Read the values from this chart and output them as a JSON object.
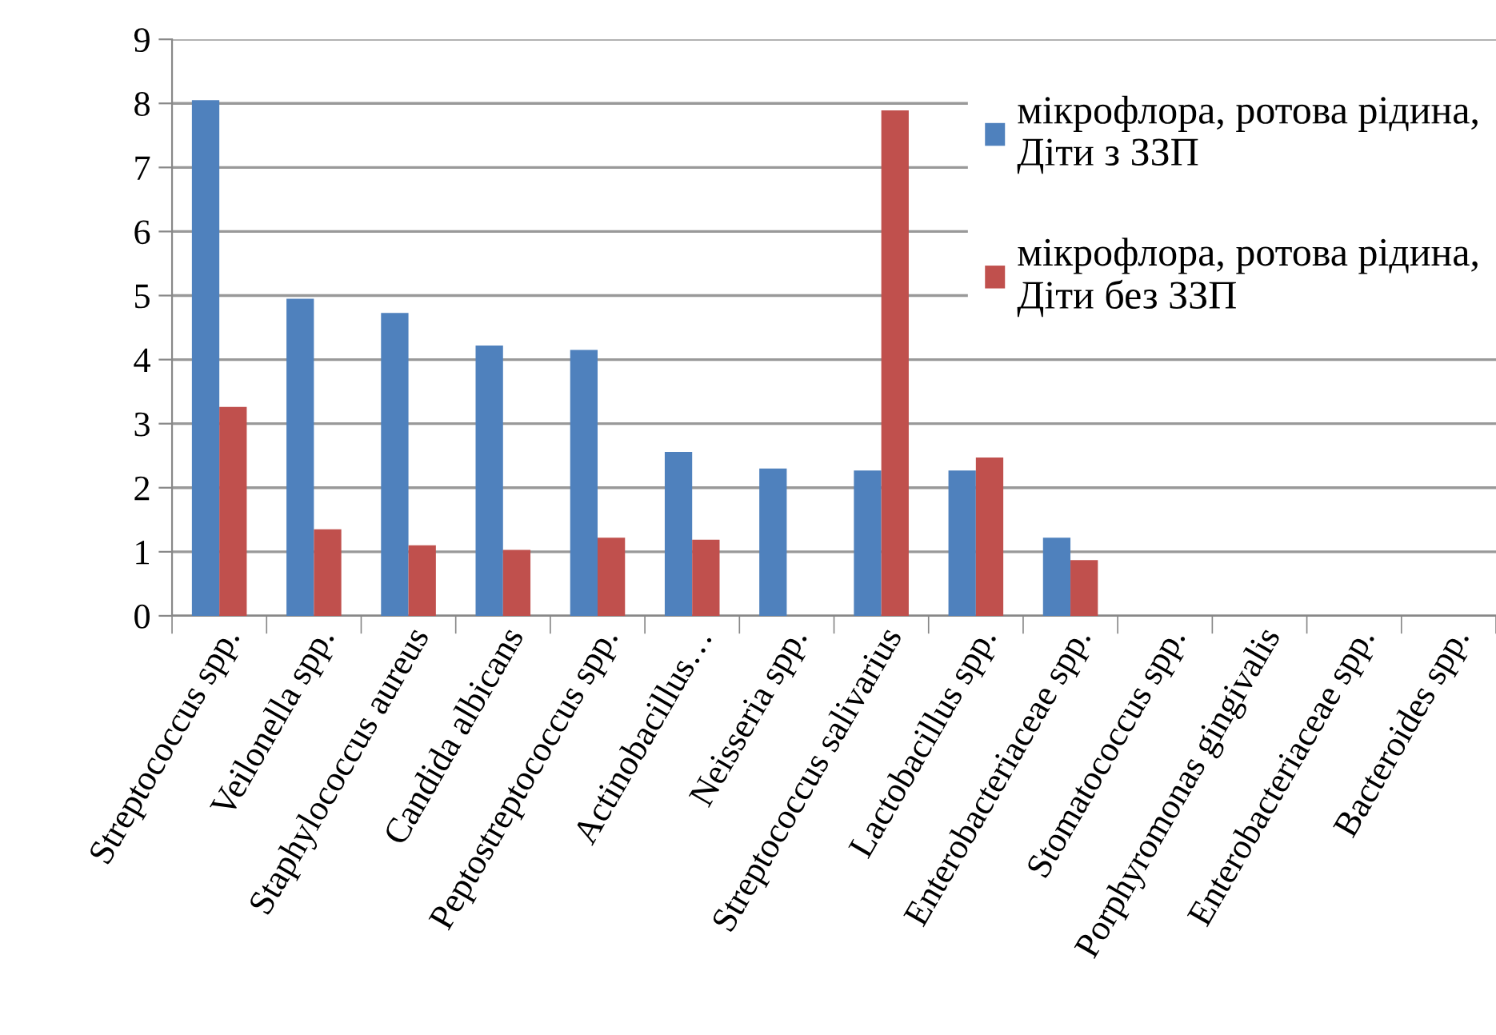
{
  "chart_data": {
    "type": "bar",
    "categories": [
      "Streptococcus spp.",
      "Veilonella spp.",
      "Staphylococcus aureus",
      "Candida albicans",
      "Peptostreptococcus spp.",
      "Actinobacillus…",
      "Neisseria spp.",
      "Streptococcus salivarius",
      "Lactobacillus spp.",
      "Enterobacteriaceae spp.",
      "Stomatococcus spp.",
      "Porphyromonas gingivalis",
      "Enterobacteriaceae spp.",
      "Bacteroides spp."
    ],
    "series": [
      {
        "name": "мікрофлора, ротова рідина,\nДіти з ЗЗП",
        "color": "#4f81bd",
        "values": [
          8.05,
          4.95,
          4.73,
          4.22,
          4.15,
          2.56,
          2.3,
          2.27,
          2.27,
          1.22,
          0,
          0,
          0,
          0
        ]
      },
      {
        "name": "мікрофлора, ротова рідина,\nДіти без ЗЗП",
        "color": "#c0504d",
        "values": [
          3.26,
          1.35,
          1.1,
          1.03,
          1.22,
          1.19,
          0,
          7.89,
          2.47,
          0.87,
          0,
          0,
          0,
          0
        ]
      }
    ],
    "ylim": [
      0,
      9
    ],
    "yticks": [
      0,
      1,
      2,
      3,
      4,
      5,
      6,
      7,
      8,
      9
    ],
    "grid": "y",
    "legend": "top right"
  }
}
